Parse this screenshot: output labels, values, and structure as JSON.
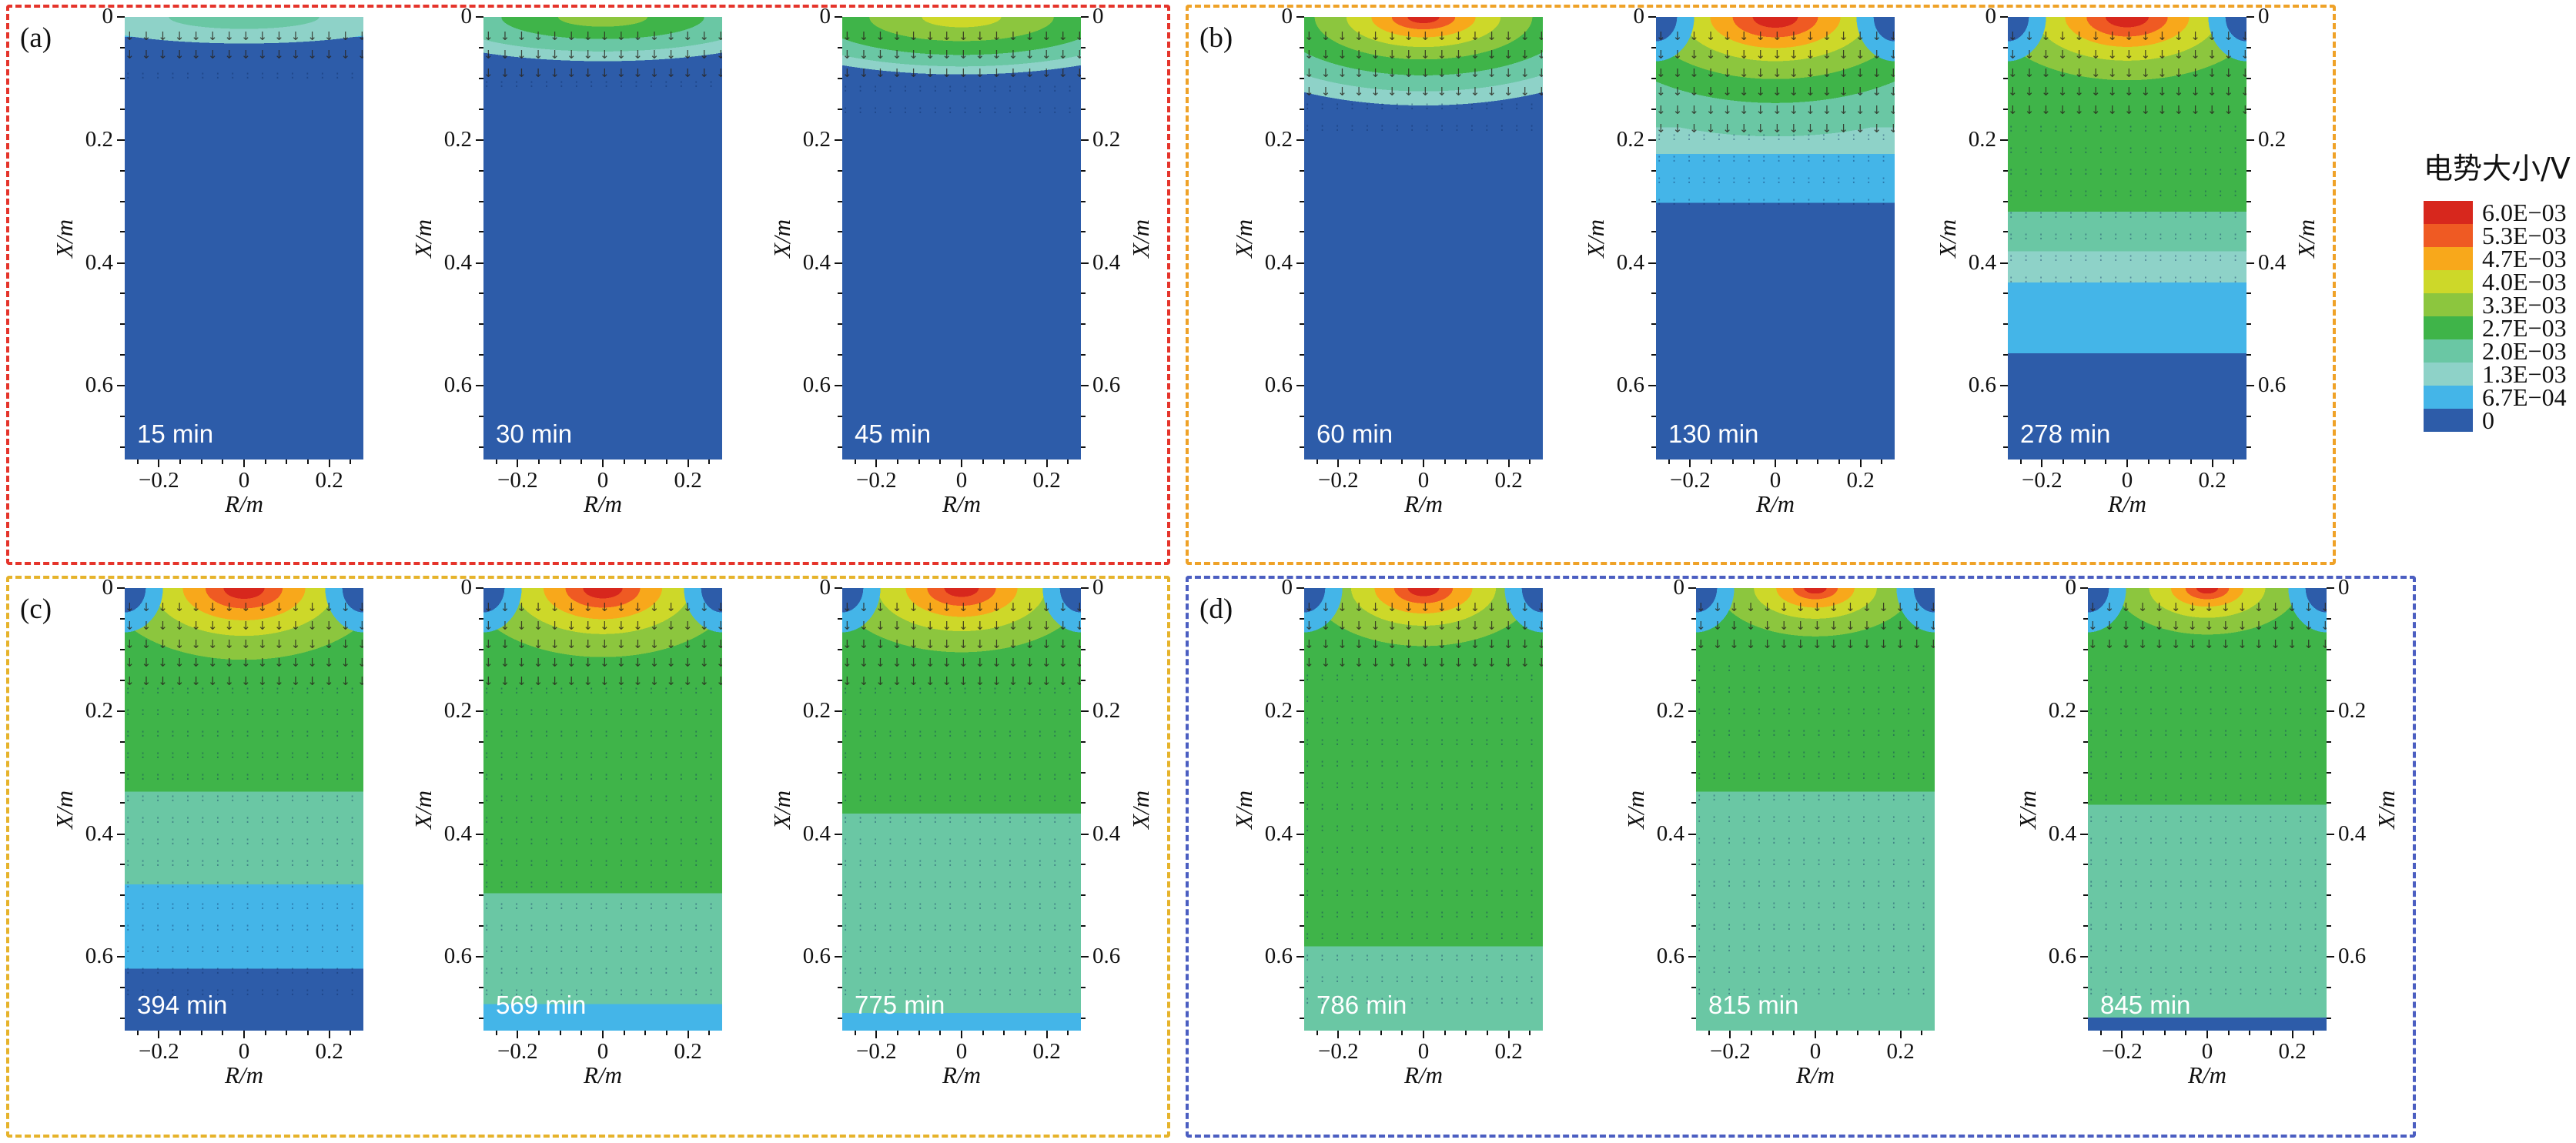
{
  "legend": {
    "title": "电势大小/V",
    "entries": [
      {
        "key": "6.0E-03",
        "label": "6.0E−03",
        "color": "#d7271d"
      },
      {
        "key": "5.3E-03",
        "label": "5.3E−03",
        "color": "#ef5a23"
      },
      {
        "key": "4.7E-03",
        "label": "4.7E−03",
        "color": "#f8a81b"
      },
      {
        "key": "4.0E-03",
        "label": "4.0E−03",
        "color": "#cdd829"
      },
      {
        "key": "3.3E-03",
        "label": "3.3E−03",
        "color": "#8cc63e"
      },
      {
        "key": "2.7E-03",
        "label": "2.7E−03",
        "color": "#3fb449"
      },
      {
        "key": "2.0E-03",
        "label": "2.0E−03",
        "color": "#6ac7a4"
      },
      {
        "key": "1.3E-03",
        "label": "1.3E−03",
        "color": "#8ed2c8"
      },
      {
        "key": "6.7E-04",
        "label": "6.7E−04",
        "color": "#44b5e8"
      },
      {
        "key": "0",
        "label": "0",
        "color": "#2d5ca9"
      }
    ]
  },
  "axes": {
    "x_label": "R/m",
    "y_label": "X/m",
    "x_ticks": [
      {
        "label": "−0.2",
        "pos": 0.143
      },
      {
        "label": "0",
        "pos": 0.5
      },
      {
        "label": "0.2",
        "pos": 0.857
      }
    ],
    "x_minor": [
      0.054,
      0.232,
      0.321,
      0.411,
      0.589,
      0.679,
      0.768,
      0.946
    ],
    "y_ticks": [
      {
        "label": "0",
        "pos": 0.0
      },
      {
        "label": "0.2",
        "pos": 0.278
      },
      {
        "label": "0.4",
        "pos": 0.556
      },
      {
        "label": "0.6",
        "pos": 0.833
      }
    ],
    "y_minor": [
      0.069,
      0.139,
      0.208,
      0.347,
      0.417,
      0.486,
      0.625,
      0.694,
      0.764,
      0.903,
      0.972
    ]
  },
  "chart_data": {
    "type": "heatmap",
    "subtype": "filled-contour-with-vector-field",
    "colorbar_title": "电势大小/V",
    "potential_levels_V": [
      0,
      0.00067,
      0.0013,
      0.002,
      0.0027,
      0.0033,
      0.004,
      0.0047,
      0.0053,
      0.006
    ],
    "x_axis": {
      "label": "R/m",
      "ticks": [
        -0.2,
        0,
        0.2
      ],
      "range": [
        -0.28,
        0.28
      ]
    },
    "y_axis": {
      "label": "X/m",
      "ticks": [
        0,
        0.2,
        0.4,
        0.6
      ],
      "range": [
        0,
        0.72
      ],
      "inverted": true
    },
    "times_min": [
      15,
      30,
      45,
      60,
      130,
      278,
      394,
      569,
      775,
      786,
      815,
      845
    ],
    "groups": [
      {
        "id": "(a)",
        "border_color": "#e5342b",
        "panels": [
          {
            "time": "15 min",
            "right_axis": false,
            "corners": false,
            "bands": [
              [
                "6.7E-04",
                0.045
              ],
              [
                "0",
                1.0
              ]
            ],
            "rings": {
              "w": 70,
              "h": 6,
              "stops": [
                [
                  "2.0E-03",
                  45
                ],
                [
                  "1.3E-03",
                  100
                ]
              ]
            },
            "quiver": {
              "strong": 0.1,
              "faint": 0.14
            }
          },
          {
            "time": "30 min",
            "right_axis": false,
            "corners": false,
            "bands": [
              [
                "6.7E-04",
                0.06
              ],
              [
                "0",
                1.0
              ]
            ],
            "rings": {
              "w": 85,
              "h": 10,
              "stops": [
                [
                  "3.3E-03",
                  22
                ],
                [
                  "2.7E-03",
                  50
                ],
                [
                  "2.0E-03",
                  78
                ],
                [
                  "1.3E-03",
                  100
                ]
              ]
            },
            "quiver": {
              "strong": 0.12,
              "faint": 0.17
            }
          },
          {
            "time": "45 min",
            "right_axis": true,
            "corners": false,
            "bands": [
              [
                "6.7E-04",
                0.075
              ],
              [
                "0",
                1.0
              ]
            ],
            "rings": {
              "w": 92,
              "h": 13,
              "stops": [
                [
                  "4.0E-03",
                  18
                ],
                [
                  "3.3E-03",
                  42
                ],
                [
                  "2.7E-03",
                  66
                ],
                [
                  "2.0E-03",
                  86
                ],
                [
                  "1.3E-03",
                  100
                ]
              ]
            },
            "quiver": {
              "strong": 0.13,
              "faint": 0.2
            }
          }
        ]
      },
      {
        "id": "(b)",
        "border_color": "#efa228",
        "panels": [
          {
            "time": "60 min",
            "right_axis": false,
            "corners": false,
            "bands": [
              [
                "6.7E-04",
                0.17
              ],
              [
                "0",
                1.0
              ]
            ],
            "rings": {
              "w": 95,
              "h": 20,
              "stops": [
                [
                  "6.0E-03",
                  7
                ],
                [
                  "5.3E-03",
                  14
                ],
                [
                  "4.7E-03",
                  23
                ],
                [
                  "4.0E-03",
                  34
                ],
                [
                  "3.3E-03",
                  48
                ],
                [
                  "2.7E-03",
                  66
                ],
                [
                  "2.0E-03",
                  84
                ],
                [
                  "1.3E-03",
                  100
                ]
              ]
            },
            "quiver": {
              "strong": 0.17,
              "faint": 0.26
            }
          },
          {
            "time": "130 min",
            "right_axis": false,
            "corners": true,
            "bands": [
              [
                "2.0E-03",
                0.25
              ],
              [
                "1.3E-03",
                0.31
              ],
              [
                "6.7E-04",
                0.42
              ],
              [
                "0",
                1.0
              ]
            ],
            "rings": {
              "w": 105,
              "h": 27,
              "stops": [
                [
                  "6.0E-03",
                  9
                ],
                [
                  "5.3E-03",
                  17
                ],
                [
                  "4.7E-03",
                  26
                ],
                [
                  "4.0E-03",
                  37
                ],
                [
                  "3.3E-03",
                  52
                ],
                [
                  "2.7E-03",
                  72
                ],
                [
                  "2.0E-03",
                  100
                ]
              ]
            },
            "quiver": {
              "strong": 0.24,
              "faint": 0.42
            }
          },
          {
            "time": "278 min",
            "right_axis": true,
            "corners": true,
            "bands": [
              [
                "2.7E-03",
                0.44
              ],
              [
                "2.0E-03",
                0.53
              ],
              [
                "1.3E-03",
                0.6
              ],
              [
                "6.7E-04",
                0.76
              ],
              [
                "0",
                1.0
              ]
            ],
            "rings": {
              "w": 100,
              "h": 26,
              "stops": [
                [
                  "6.0E-03",
                  9
                ],
                [
                  "5.3E-03",
                  17
                ],
                [
                  "4.7E-03",
                  26
                ],
                [
                  "4.0E-03",
                  38
                ],
                [
                  "3.3E-03",
                  55
                ],
                [
                  "2.7E-03",
                  100
                ]
              ]
            },
            "quiver": {
              "strong": 0.22,
              "faint": 0.62
            }
          }
        ]
      },
      {
        "id": "(c)",
        "border_color": "#e6b32b",
        "panels": [
          {
            "time": "394 min",
            "right_axis": false,
            "corners": true,
            "bands": [
              [
                "2.7E-03",
                0.46
              ],
              [
                "2.0E-03",
                0.67
              ],
              [
                "6.7E-04",
                0.86
              ],
              [
                "0",
                1.0
              ]
            ],
            "rings": {
              "w": 95,
              "h": 27,
              "stops": [
                [
                  "6.0E-03",
                  9
                ],
                [
                  "5.3E-03",
                  17
                ],
                [
                  "4.7E-03",
                  27
                ],
                [
                  "4.0E-03",
                  40
                ],
                [
                  "3.3E-03",
                  60
                ],
                [
                  "2.7E-03",
                  100
                ]
              ]
            },
            "quiver": {
              "strong": 0.2,
              "faint": 0.93
            }
          },
          {
            "time": "569 min",
            "right_axis": false,
            "corners": true,
            "bands": [
              [
                "2.7E-03",
                0.69
              ],
              [
                "2.0E-03",
                0.94
              ],
              [
                "6.7E-04",
                1.0
              ]
            ],
            "rings": {
              "w": 92,
              "h": 26,
              "stops": [
                [
                  "6.0E-03",
                  9
                ],
                [
                  "5.3E-03",
                  17
                ],
                [
                  "4.7E-03",
                  27
                ],
                [
                  "4.0E-03",
                  40
                ],
                [
                  "3.3E-03",
                  60
                ],
                [
                  "2.7E-03",
                  100
                ]
              ]
            },
            "quiver": {
              "strong": 0.2,
              "faint": 0.93
            }
          },
          {
            "time": "775 min",
            "right_axis": true,
            "corners": true,
            "bands": [
              [
                "2.7E-03",
                0.51
              ],
              [
                "2.0E-03",
                0.96
              ],
              [
                "6.7E-04",
                1.0
              ]
            ],
            "rings": {
              "w": 90,
              "h": 25,
              "stops": [
                [
                  "6.0E-03",
                  8
                ],
                [
                  "5.3E-03",
                  16
                ],
                [
                  "4.7E-03",
                  26
                ],
                [
                  "4.0E-03",
                  39
                ],
                [
                  "3.3E-03",
                  58
                ],
                [
                  "2.7E-03",
                  100
                ]
              ]
            },
            "quiver": {
              "strong": 0.2,
              "faint": 0.93
            }
          }
        ]
      },
      {
        "id": "(d)",
        "border_color": "#4b5ec1",
        "panels": [
          {
            "time": "786 min",
            "right_axis": false,
            "corners": true,
            "bands": [
              [
                "2.7E-03",
                0.81
              ],
              [
                "2.0E-03",
                1.0
              ]
            ],
            "rings": {
              "w": 82,
              "h": 23,
              "stops": [
                [
                  "6.0E-03",
                  8
                ],
                [
                  "5.3E-03",
                  15
                ],
                [
                  "4.7E-03",
                  25
                ],
                [
                  "4.0E-03",
                  37
                ],
                [
                  "3.3E-03",
                  57
                ],
                [
                  "2.7E-03",
                  100
                ]
              ]
            },
            "quiver": {
              "strong": 0.17,
              "faint": 0.92
            }
          },
          {
            "time": "815 min",
            "right_axis": false,
            "corners": true,
            "bands": [
              [
                "2.7E-03",
                0.46
              ],
              [
                "2.0E-03",
                1.0
              ]
            ],
            "rings": {
              "w": 78,
              "h": 21,
              "stops": [
                [
                  "6.0E-03",
                  6
                ],
                [
                  "5.3E-03",
                  12
                ],
                [
                  "4.7E-03",
                  21
                ],
                [
                  "4.0E-03",
                  33
                ],
                [
                  "3.3E-03",
                  52
                ],
                [
                  "2.7E-03",
                  100
                ]
              ]
            },
            "quiver": {
              "strong": 0.15,
              "faint": 0.92
            }
          },
          {
            "time": "845 min",
            "right_axis": true,
            "corners": true,
            "bands": [
              [
                "2.7E-03",
                0.49
              ],
              [
                "2.0E-03",
                0.97
              ],
              [
                "0",
                1.0
              ]
            ],
            "rings": {
              "w": 76,
              "h": 21,
              "stops": [
                [
                  "6.0E-03",
                  6
                ],
                [
                  "5.3E-03",
                  12
                ],
                [
                  "4.7E-03",
                  20
                ],
                [
                  "4.0E-03",
                  32
                ],
                [
                  "3.3E-03",
                  50
                ],
                [
                  "2.7E-03",
                  100
                ]
              ]
            },
            "quiver": {
              "strong": 0.15,
              "faint": 0.92
            }
          }
        ]
      }
    ]
  }
}
